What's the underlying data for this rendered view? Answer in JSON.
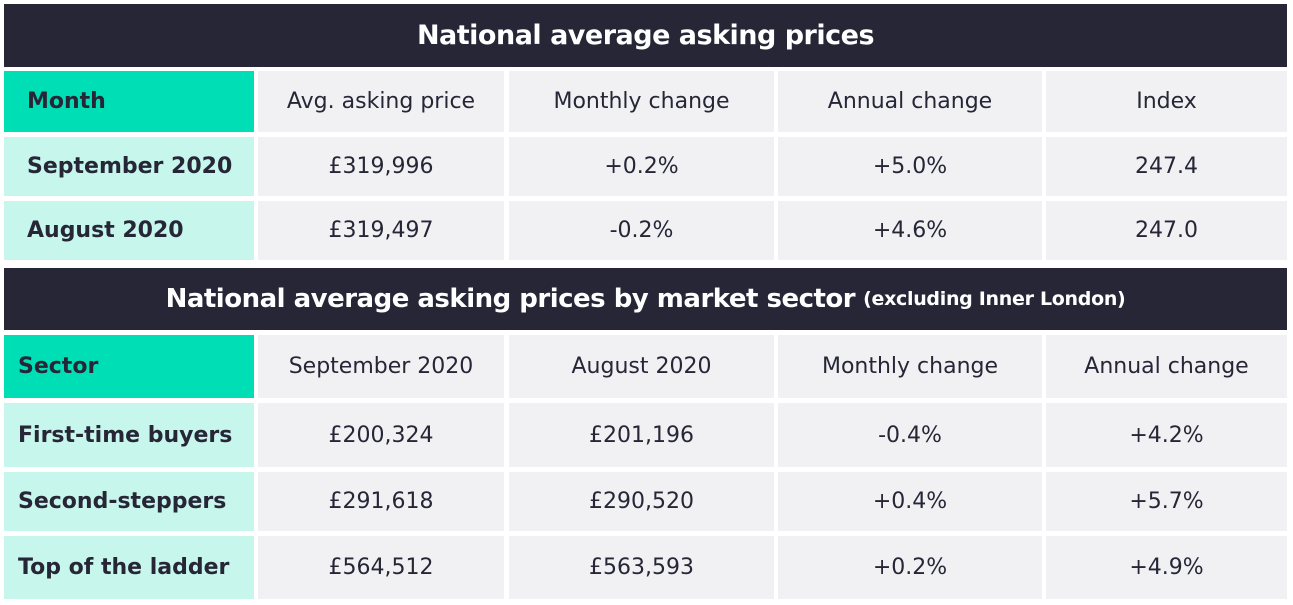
{
  "table1": {
    "title": "National average asking prices",
    "headers": [
      "Month",
      "Avg. asking price",
      "Monthly change",
      "Annual change",
      "Index"
    ],
    "rows": [
      [
        "September 2020",
        "£319,996",
        "+0.2%",
        "+5.0%",
        "247.4"
      ],
      [
        "August 2020",
        "£319,497",
        "-0.2%",
        "+4.6%",
        "247.0"
      ]
    ]
  },
  "table2": {
    "title": "National average asking prices by market sector",
    "title_note": "(excluding Inner London)",
    "headers": [
      "Sector",
      "September 2020",
      "August 2020",
      "Monthly change",
      "Annual change"
    ],
    "rows": [
      [
        "First-time buyers",
        "£200,324",
        "£201,196",
        "-0.4%",
        "+4.2%"
      ],
      [
        "Second-steppers",
        "£291,618",
        "£290,520",
        "+0.4%",
        "+5.7%"
      ],
      [
        "Top of the ladder",
        "£564,512",
        "£563,593",
        "+0.2%",
        "+4.9%"
      ]
    ]
  },
  "colors": {
    "banner": "#262637",
    "header_accent": "#00deb6",
    "row_label": "#c7f7ec",
    "cell": "#f1f1f4"
  }
}
